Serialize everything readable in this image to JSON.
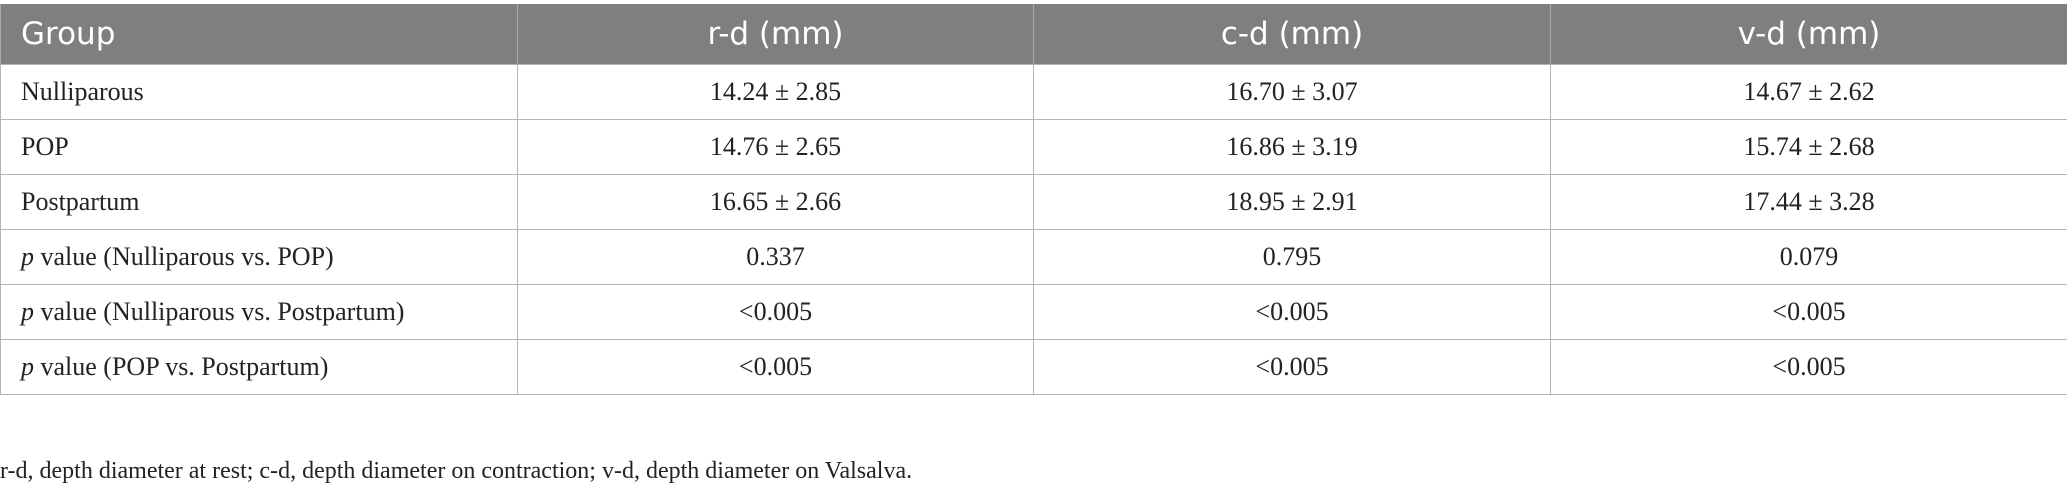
{
  "table": {
    "headers": [
      "Group",
      "r-d (mm)",
      "c-d (mm)",
      "v-d (mm)"
    ],
    "rows": [
      {
        "label": "Nulliparous",
        "values": [
          "14.24 ± 2.85",
          "16.70 ± 3.07",
          "14.67 ± 2.62"
        ]
      },
      {
        "label": "POP",
        "values": [
          "14.76 ± 2.65",
          "16.86 ± 3.19",
          "15.74 ± 2.68"
        ]
      },
      {
        "label": "Postpartum",
        "values": [
          "16.65 ± 2.66",
          "18.95 ± 2.91",
          "17.44 ± 3.28"
        ]
      },
      {
        "label_italic": "p",
        "label": " value (Nulliparous vs. POP)",
        "values": [
          "0.337",
          "0.795",
          "0.079"
        ]
      },
      {
        "label_italic": "p",
        "label": " value (Nulliparous vs. Postpartum)",
        "values": [
          "<0.005",
          "<0.005",
          "<0.005"
        ]
      },
      {
        "label_italic": "p",
        "label": " value (POP vs. Postpartum)",
        "values": [
          "<0.005",
          "<0.005",
          "<0.005"
        ]
      }
    ]
  },
  "footnote": "r-d, depth diameter at rest; c-d, depth diameter on contraction; v-d, depth diameter on Valsalva.",
  "colors": {
    "header_bg": "#7f7f7d",
    "header_text": "#ffffff",
    "border": "#b5b5b5"
  }
}
